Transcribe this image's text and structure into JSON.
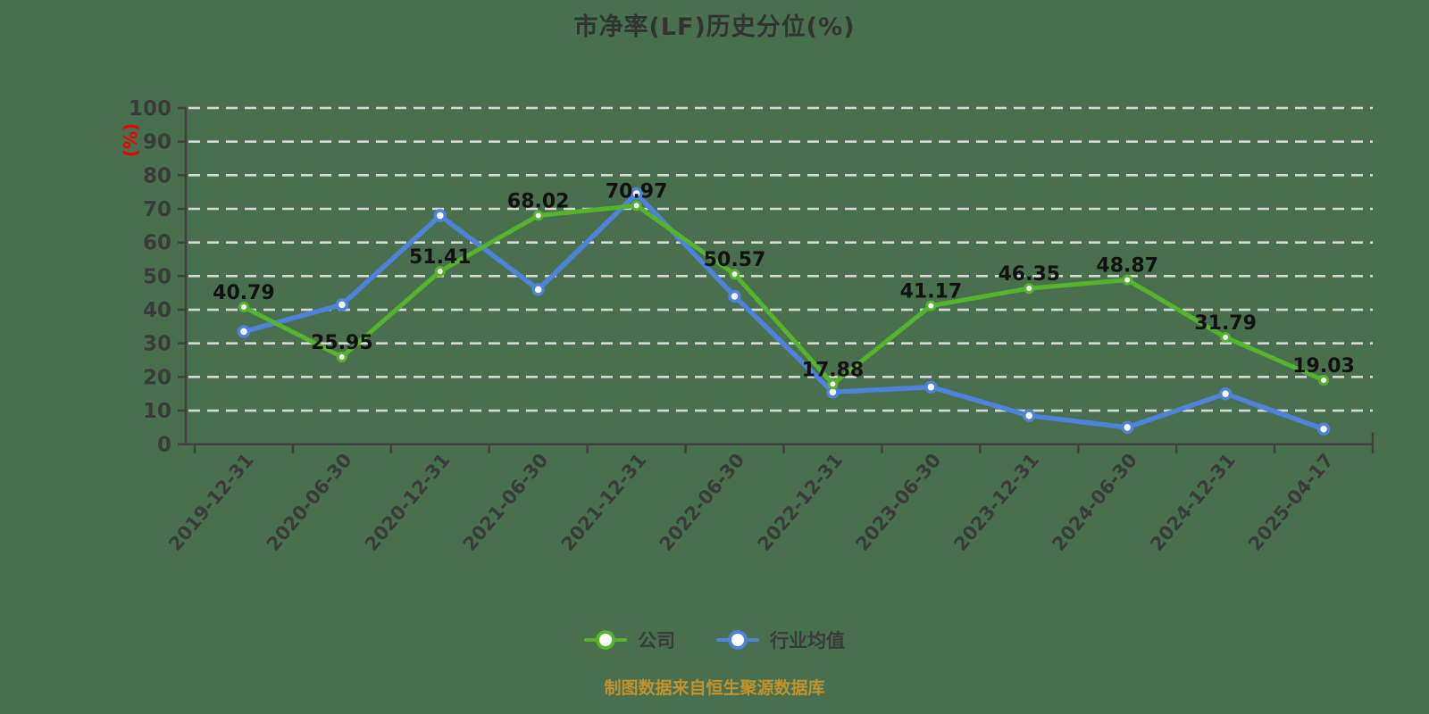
{
  "chart_data": {
    "type": "line",
    "title": "市净率(LF)历史分位(%)",
    "ylabel": "(%)",
    "xlabel": "",
    "ylim": [
      0,
      100
    ],
    "ytick_step": 10,
    "grid": "horizontal-dashed",
    "legend_position": "bottom",
    "categories": [
      "2019-12-31",
      "2020-06-30",
      "2020-12-31",
      "2021-06-30",
      "2021-12-31",
      "2022-06-30",
      "2022-12-31",
      "2023-06-30",
      "2023-12-31",
      "2024-06-30",
      "2024-12-31",
      "2025-04-17"
    ],
    "series": [
      {
        "name": "公司",
        "color": "#55b32c",
        "show_labels": true,
        "values": [
          40.79,
          25.95,
          51.41,
          68.02,
          70.97,
          50.57,
          17.88,
          41.17,
          46.35,
          48.87,
          31.79,
          19.03
        ]
      },
      {
        "name": "行业均值",
        "color": "#4e82db",
        "show_labels": false,
        "values": [
          33.5,
          41.5,
          68,
          46,
          74.5,
          44,
          15.5,
          17,
          8.5,
          5,
          15,
          4.5
        ]
      }
    ]
  },
  "footer": {
    "source_note": "制图数据来自恒生聚源数据库"
  },
  "colors": {
    "background": "#48704f",
    "grid": "#d8d8d8",
    "axis": "#3f3f3f",
    "tick_label": "#3a3a3a",
    "data_label": "#111111",
    "title": "#333333",
    "ylabel": "#f00000",
    "source": "#c2922c",
    "legend_text": "#3a3a3a"
  }
}
